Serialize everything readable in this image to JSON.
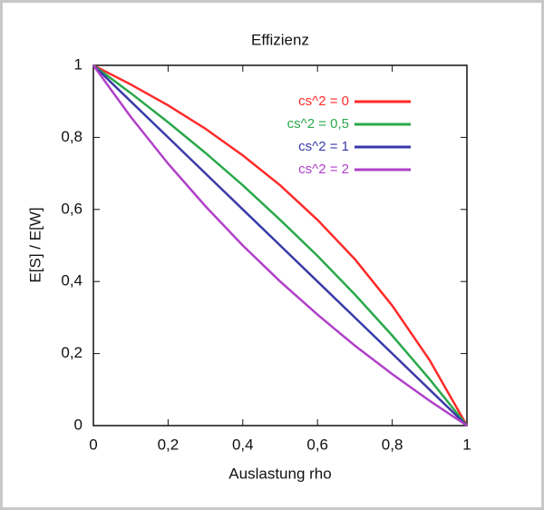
{
  "chart_data": {
    "type": "line",
    "title": "Effizienz",
    "x_label": "Auslastung rho",
    "y_label": "E[S] / E[W]",
    "x": [
      0,
      0.1,
      0.2,
      0.3,
      0.4,
      0.5,
      0.6,
      0.7,
      0.8,
      0.9,
      1
    ],
    "series": [
      {
        "name": "cs^2 = 0",
        "color": "#ff2a2a",
        "values": [
          1,
          0.947,
          0.889,
          0.824,
          0.75,
          0.667,
          0.571,
          0.462,
          0.333,
          0.182,
          0
        ]
      },
      {
        "name": "cs^2 = 0,5",
        "color": "#2aa84a",
        "values": [
          1,
          0.923,
          0.842,
          0.757,
          0.667,
          0.571,
          0.471,
          0.364,
          0.25,
          0.129,
          0
        ]
      },
      {
        "name": "cs^2 = 1",
        "color": "#3a3aa8",
        "values": [
          1,
          0.9,
          0.8,
          0.7,
          0.6,
          0.5,
          0.4,
          0.3,
          0.2,
          0.1,
          0
        ]
      },
      {
        "name": "cs^2 = 2",
        "color": "#b040c8",
        "values": [
          1,
          0.857,
          0.727,
          0.609,
          0.5,
          0.4,
          0.308,
          0.222,
          0.143,
          0.069,
          0
        ]
      }
    ],
    "xlim": [
      0,
      1
    ],
    "ylim": [
      0,
      1
    ],
    "xticks": [
      0,
      {
        "value": 0.2,
        "label": "0,2"
      },
      {
        "value": 0.4,
        "label": "0,4"
      },
      {
        "value": 0.6,
        "label": "0,6"
      },
      {
        "value": 0.8,
        "label": "0,8"
      },
      1
    ],
    "yticks": [
      0,
      {
        "value": 0.2,
        "label": "0,2"
      },
      {
        "value": 0.4,
        "label": "0,4"
      },
      {
        "value": 0.6,
        "label": "0,6"
      },
      {
        "value": 0.8,
        "label": "0,8"
      },
      1
    ],
    "grid": false,
    "legend": "upper right"
  }
}
